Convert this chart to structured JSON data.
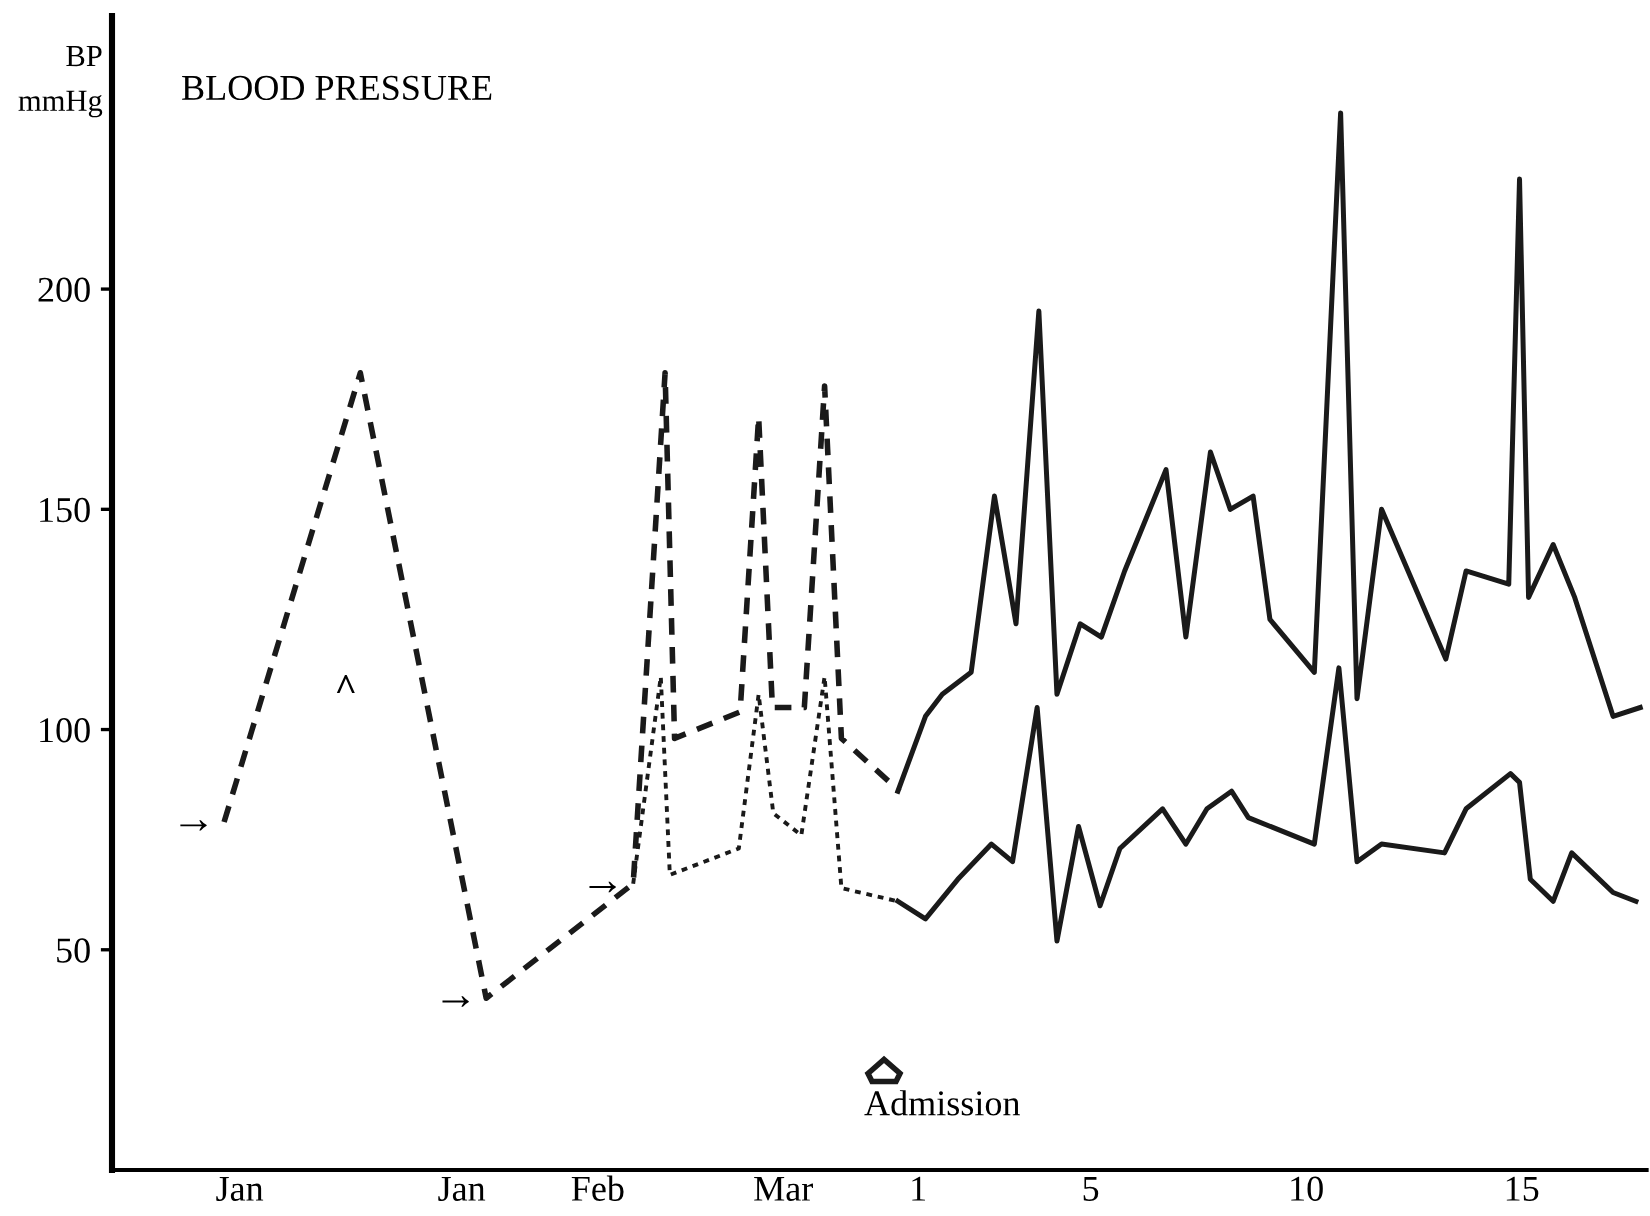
{
  "chart_data": {
    "type": "line",
    "title": "BLOOD PRESSURE",
    "ylabel": "BP\nmmHg",
    "xlim": [
      -17.7,
      17.9
    ],
    "ylim": [
      0,
      262
    ],
    "xticks": [
      {
        "value": -14.74,
        "label": "Jan"
      },
      {
        "value": -9.59,
        "label": "Jan"
      },
      {
        "value": -6.43,
        "label": "Feb"
      },
      {
        "value": -2.13,
        "label": "Mar"
      },
      1,
      5,
      10,
      15
    ],
    "yticks": [
      50,
      100,
      150,
      200
    ],
    "grid": false,
    "legend": false,
    "marker": "none",
    "series": [
      {
        "color": "#1a1a1a",
        "line_style": "dashed",
        "x": [
          -15.1,
          -11.94,
          -9.02,
          -5.61,
          -4.87,
          -4.65,
          -3.13,
          -2.7,
          -2.38,
          -1.64,
          -1.17,
          -0.78,
          0.57
        ],
        "values": [
          79,
          181,
          39,
          65,
          181,
          98,
          104,
          171,
          105,
          105,
          178,
          98,
          86
        ]
      },
      {
        "color": "#1a1a1a",
        "line_style": "dotted",
        "x": [
          -5.61,
          -4.97,
          -4.76,
          -3.16,
          -2.7,
          -2.36,
          -1.71,
          -1.17,
          -0.78,
          0.53
        ],
        "values": [
          65,
          112,
          67,
          73,
          108,
          81,
          76,
          112,
          64,
          61
        ]
      },
      {
        "color": "#1a1a1a",
        "line_style": "solid",
        "x": [
          0.53,
          1.17,
          1.56,
          2.23,
          2.77,
          3.27,
          3.8,
          4.22,
          4.76,
          5.25,
          5.79,
          6.75,
          7.21,
          7.78,
          8.24,
          8.77,
          9.16,
          10.19,
          10.8,
          11.18,
          11.75,
          13.24,
          13.71,
          14.7,
          14.95,
          15.16,
          15.73,
          16.23,
          17.12,
          17.75
        ],
        "values": [
          86,
          103,
          108,
          113,
          153,
          124,
          195,
          108,
          124,
          121,
          136,
          159,
          121,
          163,
          150,
          153,
          125,
          113,
          240,
          107,
          150,
          116,
          136,
          133,
          225,
          130,
          142,
          130,
          103,
          105
        ]
      },
      {
        "color": "#1a1a1a",
        "line_style": "solid",
        "x": [
          0.53,
          1.17,
          1.92,
          2.7,
          3.19,
          3.76,
          4.22,
          4.72,
          5.22,
          5.68,
          6.67,
          7.21,
          7.7,
          8.27,
          8.66,
          10.19,
          10.76,
          11.18,
          11.75,
          13.21,
          13.71,
          14.74,
          14.95,
          15.2,
          15.73,
          16.16,
          17.12,
          17.65
        ],
        "values": [
          61,
          57,
          66,
          74,
          70,
          105,
          52,
          78,
          60,
          73,
          82,
          74,
          82,
          86,
          80,
          74,
          114,
          70,
          74,
          72,
          82,
          90,
          88,
          66,
          61,
          72,
          63,
          61
        ]
      }
    ],
    "annotations": [
      {
        "text": "→",
        "x": -15.1,
        "y": 79
      },
      {
        "text": "→",
        "x": -9.02,
        "y": 39
      },
      {
        "text": "→",
        "x": -5.61,
        "y": 65
      },
      "^",
      "Admission"
    ]
  }
}
